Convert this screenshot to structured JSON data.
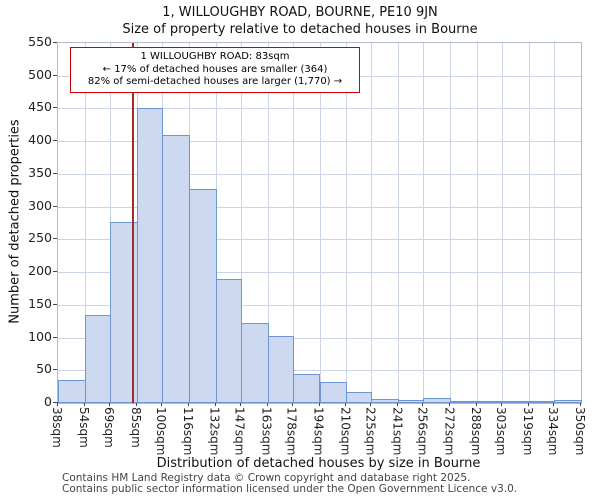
{
  "title": {
    "line1": "1, WILLOUGHBY ROAD, BOURNE, PE10 9JN",
    "line2": "Size of property relative to detached houses in Bourne"
  },
  "footer": {
    "line1": "Contains HM Land Registry data © Crown copyright and database right 2025.",
    "line2": "Contains public sector information licensed under the Open Government Licence v3.0."
  },
  "chart_data": {
    "type": "bar",
    "title": "Size of property relative to detached houses in Bourne",
    "xlabel": "Distribution of detached houses by size in Bourne",
    "ylabel": "Number of detached properties",
    "ylim": [
      0,
      550
    ],
    "ytick_step": 50,
    "grid": true,
    "legend": false,
    "bin_edges_sqm": [
      38,
      54,
      69,
      85,
      100,
      116,
      132,
      147,
      163,
      178,
      194,
      210,
      225,
      241,
      256,
      272,
      288,
      303,
      319,
      334,
      350
    ],
    "bin_labels": [
      "38sqm",
      "54sqm",
      "69sqm",
      "85sqm",
      "100sqm",
      "116sqm",
      "132sqm",
      "147sqm",
      "163sqm",
      "178sqm",
      "194sqm",
      "210sqm",
      "225sqm",
      "241sqm",
      "256sqm",
      "272sqm",
      "288sqm",
      "303sqm",
      "319sqm",
      "334sqm",
      "350sqm"
    ],
    "values": [
      35,
      135,
      277,
      450,
      410,
      327,
      190,
      123,
      103,
      44,
      32,
      17,
      6,
      4,
      7,
      2,
      3,
      1,
      1,
      4
    ],
    "marker": {
      "value_sqm": 83,
      "color": "#a52a2a"
    },
    "annotation": {
      "line1": "1 WILLOUGHBY ROAD: 83sqm",
      "line2": "← 17% of detached houses are smaller (364)",
      "line3": "82% of semi-detached houses are larger (1,770) →"
    },
    "colors": {
      "bar_fill": "#ccd9f0",
      "bar_border": "#6e96d5",
      "grid": "#ccd5e6",
      "marker_line": "#a52a2a",
      "annotation_border": "#cc0000"
    }
  }
}
